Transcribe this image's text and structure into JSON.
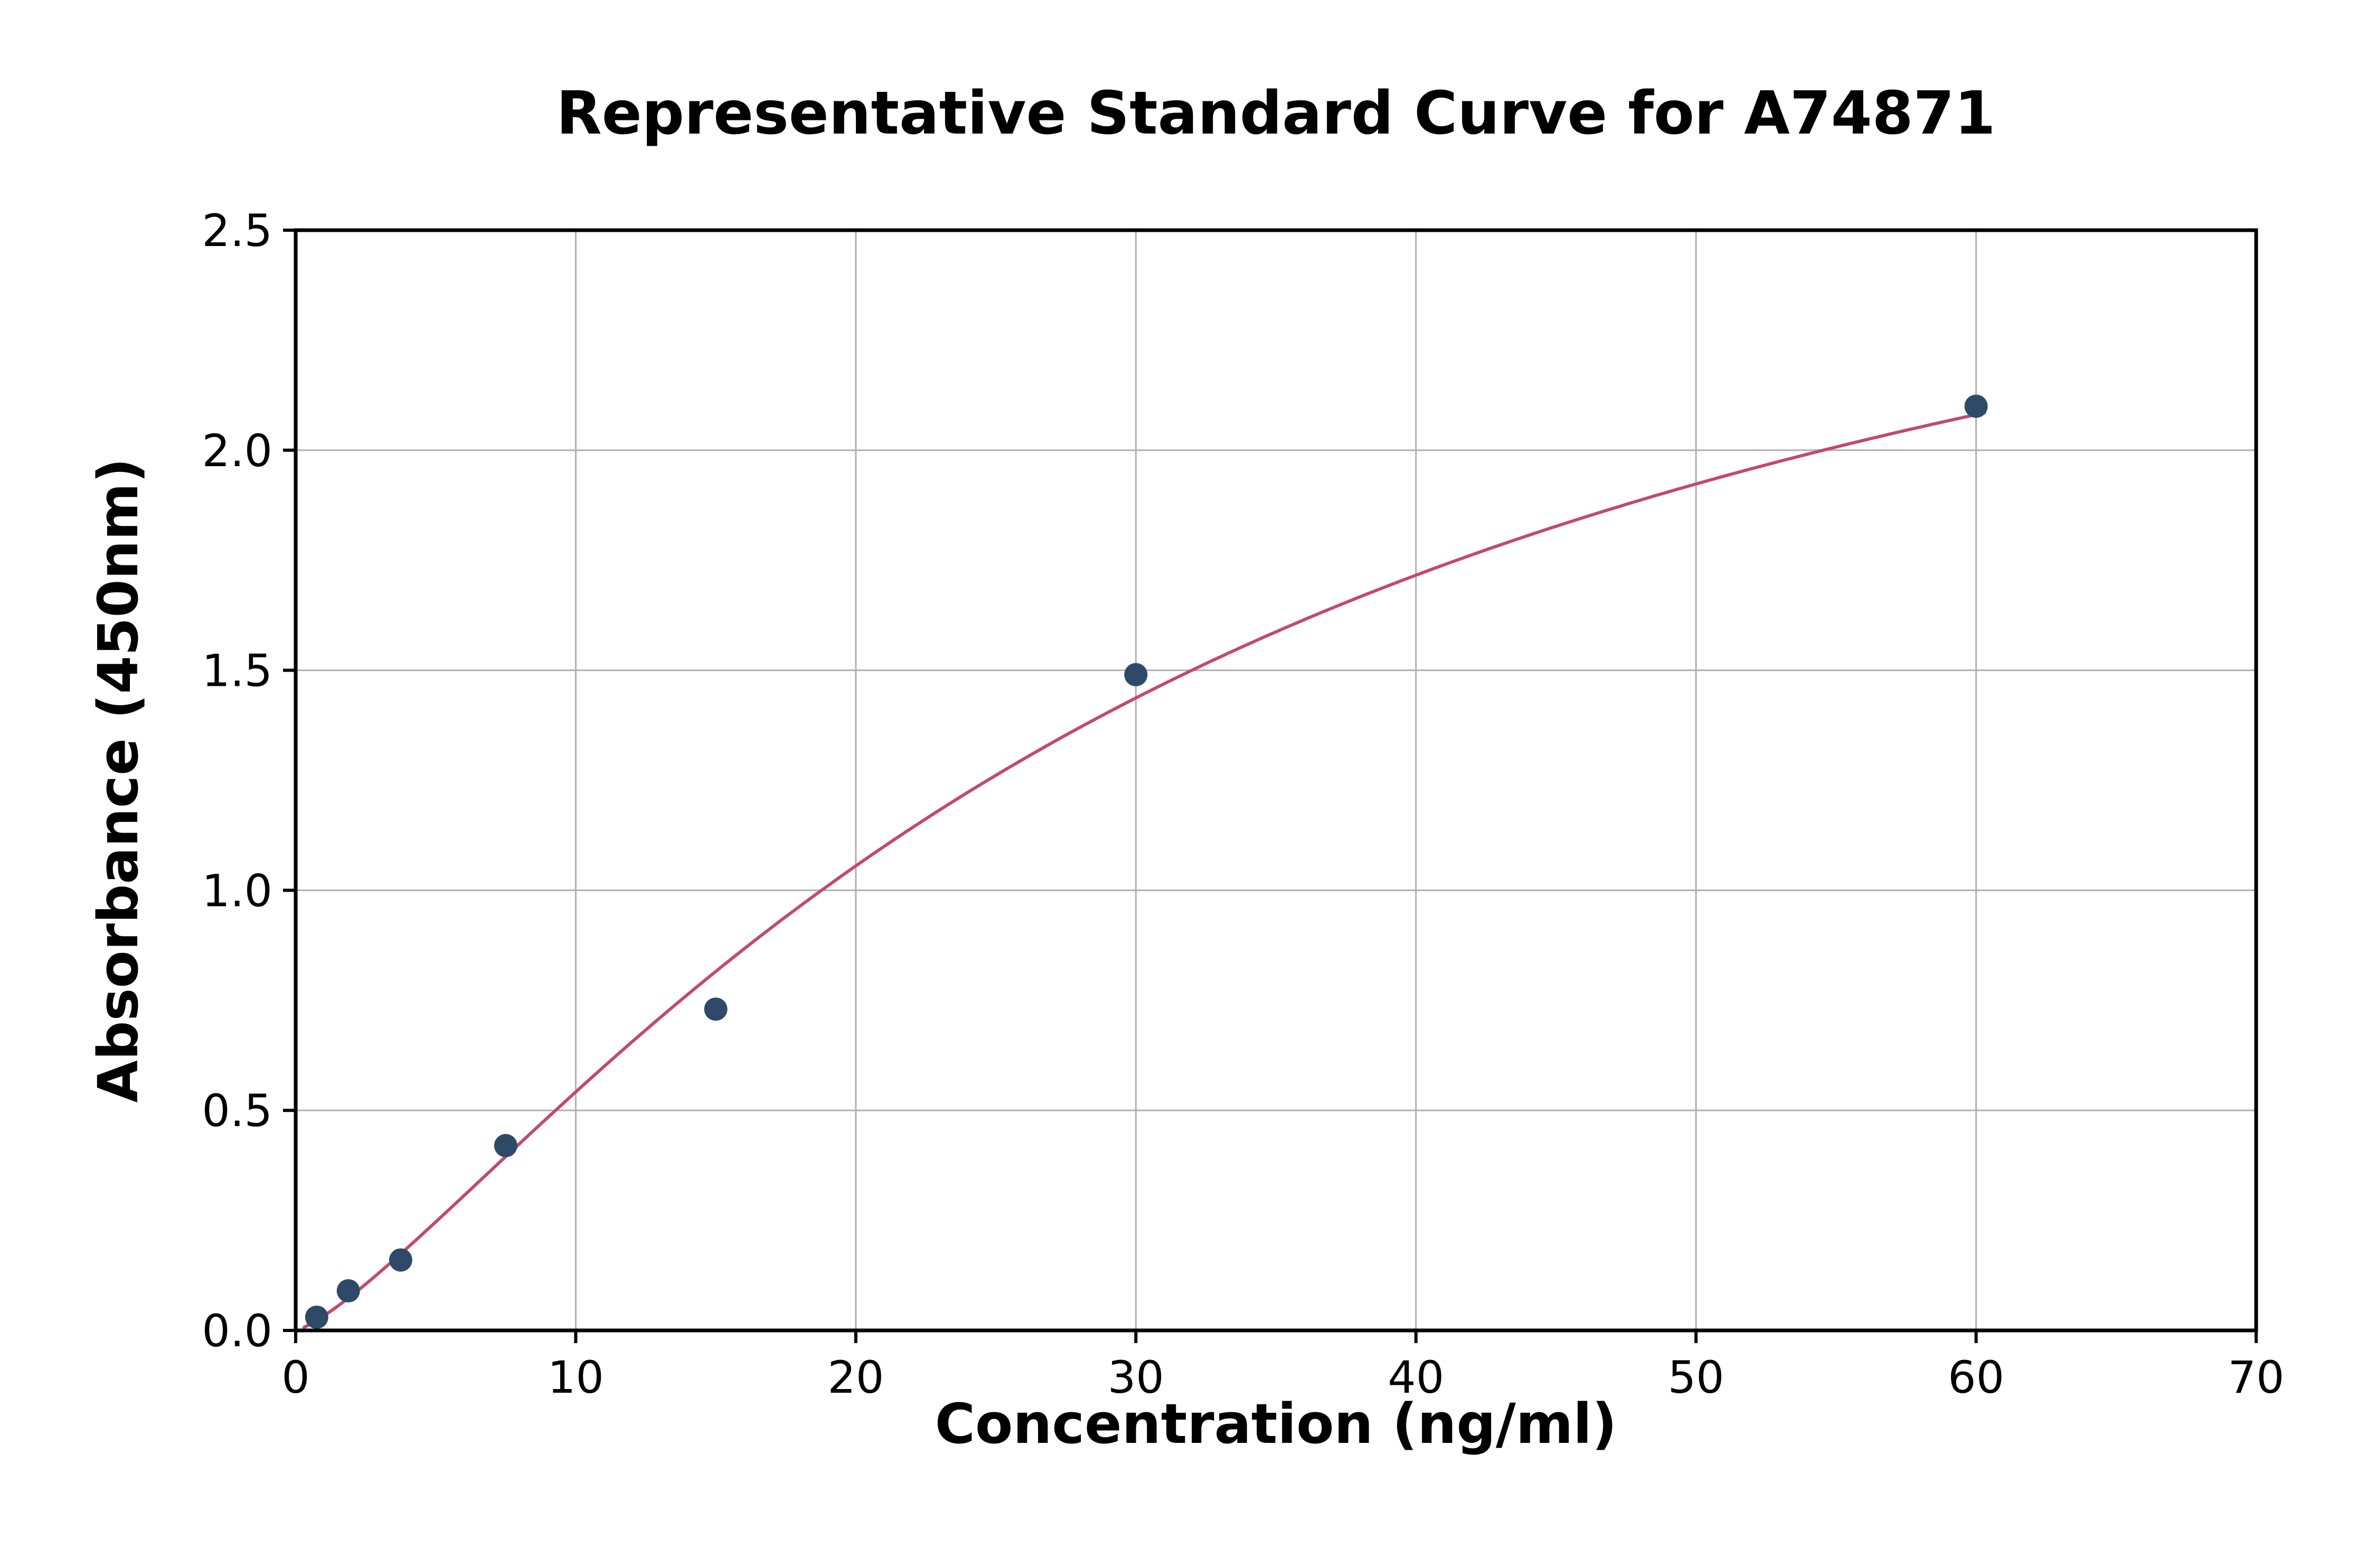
{
  "chart_data": {
    "type": "scatter",
    "title": "Representative Standard Curve for A74871",
    "xlabel": "Concentration (ng/ml)",
    "ylabel": "Absorbance (450nm)",
    "xlim": [
      0,
      70
    ],
    "ylim": [
      0,
      2.5
    ],
    "grid": true,
    "legend": "none",
    "xticks": [
      {
        "value": 0,
        "label": "0"
      },
      {
        "value": 10,
        "label": "10"
      },
      {
        "value": 20,
        "label": "20"
      },
      {
        "value": 30,
        "label": "30"
      },
      {
        "value": 40,
        "label": "40"
      },
      {
        "value": 50,
        "label": "50"
      },
      {
        "value": 60,
        "label": "60"
      },
      {
        "value": 70,
        "label": "70"
      }
    ],
    "yticks": [
      {
        "value": 0.0,
        "label": "0.0"
      },
      {
        "value": 0.5,
        "label": "0.5"
      },
      {
        "value": 1.0,
        "label": "1.0"
      },
      {
        "value": 1.5,
        "label": "1.5"
      },
      {
        "value": 2.0,
        "label": "2.0"
      },
      {
        "value": 2.5,
        "label": "2.5"
      }
    ],
    "points": [
      {
        "x": 0.75,
        "y": 0.03
      },
      {
        "x": 1.88,
        "y": 0.09
      },
      {
        "x": 3.75,
        "y": 0.16
      },
      {
        "x": 7.5,
        "y": 0.42
      },
      {
        "x": 15,
        "y": 0.73
      },
      {
        "x": 30,
        "y": 1.49
      },
      {
        "x": 60,
        "y": 2.1
      }
    ],
    "fit_curve": {
      "type": "4pl",
      "a": 0.0,
      "b": 1.3,
      "c": 32,
      "d": 3.0,
      "x_start": 0.3,
      "x_end": 60.3
    },
    "colors": {
      "curve": "#c14a6e",
      "points": "#2e4a68",
      "grid": "#b0b0b0",
      "axis": "#000000",
      "background": "#ffffff"
    }
  }
}
